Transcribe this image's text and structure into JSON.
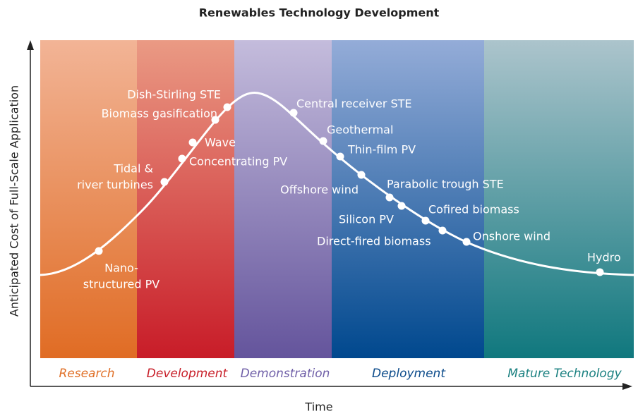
{
  "title": "Renewables Technology Development",
  "y_axis_label": "Anticipated Cost of Full-Scale Application",
  "x_axis_label": "Time",
  "stages": [
    "Research",
    "Development",
    "Demonstration",
    "Deployment",
    "Mature Technology"
  ],
  "technologies": [
    {
      "lines": [
        "Nano-",
        "structured PV"
      ]
    },
    {
      "lines": [
        "Tidal &",
        "river turbines"
      ]
    },
    {
      "lines": [
        "Concentrating PV"
      ]
    },
    {
      "lines": [
        "Wave"
      ]
    },
    {
      "lines": [
        "Biomass gasification"
      ]
    },
    {
      "lines": [
        "Dish-Stirling STE"
      ]
    },
    {
      "lines": [
        "Central receiver STE"
      ]
    },
    {
      "lines": [
        "Geothermal"
      ]
    },
    {
      "lines": [
        "Thin-film PV"
      ]
    },
    {
      "lines": [
        "Offshore wind"
      ]
    },
    {
      "lines": [
        "Parabolic trough STE"
      ]
    },
    {
      "lines": [
        "Silicon PV"
      ]
    },
    {
      "lines": [
        "Cofired biomass"
      ]
    },
    {
      "lines": [
        "Direct-fired biomass"
      ]
    },
    {
      "lines": [
        "Onshore wind"
      ]
    },
    {
      "lines": [
        "Hydro"
      ]
    }
  ]
}
